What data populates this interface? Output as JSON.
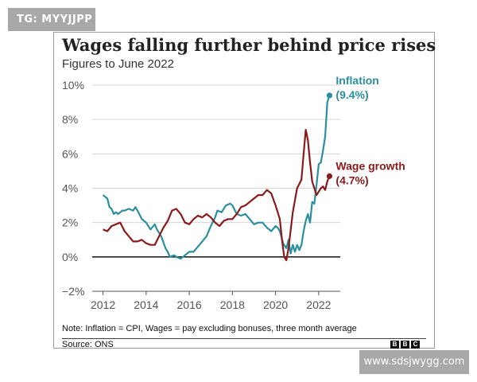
{
  "watermarks": {
    "top": "TG: MYYJJPP",
    "bottom": "www.sdsjwygg.com"
  },
  "chart_data": {
    "type": "line",
    "title": "Wages falling further behind price rises",
    "subtitle": "Figures to June 2022",
    "ylim": [
      -2,
      10
    ],
    "xlim": [
      2011.5,
      2023.0
    ],
    "y_ticks": [
      {
        "value": 10,
        "label": "10%"
      },
      {
        "value": 8,
        "label": "8%"
      },
      {
        "value": 6,
        "label": "6%"
      },
      {
        "value": 4,
        "label": "4%"
      },
      {
        "value": 2,
        "label": "2%"
      },
      {
        "value": 0,
        "label": "0%"
      },
      {
        "value": -2,
        "label": "−2%"
      }
    ],
    "x_ticks": [
      {
        "value": 2012,
        "label": "2012"
      },
      {
        "value": 2014,
        "label": "2014"
      },
      {
        "value": 2016,
        "label": "2016"
      },
      {
        "value": 2018,
        "label": "2018"
      },
      {
        "value": 2020,
        "label": "2020"
      },
      {
        "value": 2022,
        "label": "2022"
      }
    ],
    "series": [
      {
        "name": "Inflation",
        "end_label": "(9.4%)",
        "color": "#2b8fa0",
        "points": [
          [
            2012.0,
            3.6
          ],
          [
            2012.1,
            3.5
          ],
          [
            2012.2,
            3.4
          ],
          [
            2012.3,
            2.9
          ],
          [
            2012.4,
            2.8
          ],
          [
            2012.5,
            2.5
          ],
          [
            2012.6,
            2.6
          ],
          [
            2012.7,
            2.5
          ],
          [
            2012.8,
            2.6
          ],
          [
            2012.9,
            2.7
          ],
          [
            2013.0,
            2.7
          ],
          [
            2013.2,
            2.8
          ],
          [
            2013.4,
            2.7
          ],
          [
            2013.5,
            2.9
          ],
          [
            2013.6,
            2.7
          ],
          [
            2013.8,
            2.2
          ],
          [
            2013.9,
            2.1
          ],
          [
            2014.0,
            2.0
          ],
          [
            2014.2,
            1.6
          ],
          [
            2014.4,
            1.9
          ],
          [
            2014.5,
            1.6
          ],
          [
            2014.7,
            1.2
          ],
          [
            2014.9,
            0.5
          ],
          [
            2015.0,
            0.3
          ],
          [
            2015.1,
            0.0
          ],
          [
            2015.3,
            0.1
          ],
          [
            2015.4,
            0.0
          ],
          [
            2015.6,
            -0.1
          ],
          [
            2015.8,
            0.1
          ],
          [
            2016.0,
            0.3
          ],
          [
            2016.2,
            0.3
          ],
          [
            2016.4,
            0.6
          ],
          [
            2016.6,
            0.9
          ],
          [
            2016.8,
            1.2
          ],
          [
            2017.0,
            1.8
          ],
          [
            2017.2,
            2.3
          ],
          [
            2017.3,
            2.7
          ],
          [
            2017.5,
            2.6
          ],
          [
            2017.7,
            3.0
          ],
          [
            2017.9,
            3.1
          ],
          [
            2018.0,
            3.0
          ],
          [
            2018.2,
            2.5
          ],
          [
            2018.4,
            2.4
          ],
          [
            2018.6,
            2.5
          ],
          [
            2018.8,
            2.2
          ],
          [
            2019.0,
            1.9
          ],
          [
            2019.2,
            2.0
          ],
          [
            2019.4,
            2.0
          ],
          [
            2019.6,
            1.7
          ],
          [
            2019.8,
            1.5
          ],
          [
            2020.0,
            1.8
          ],
          [
            2020.1,
            1.7
          ],
          [
            2020.2,
            1.5
          ],
          [
            2020.35,
            0.8
          ],
          [
            2020.5,
            0.5
          ],
          [
            2020.6,
            1.0
          ],
          [
            2020.7,
            0.2
          ],
          [
            2020.8,
            0.7
          ],
          [
            2020.9,
            0.3
          ],
          [
            2021.0,
            0.7
          ],
          [
            2021.1,
            0.4
          ],
          [
            2021.2,
            0.7
          ],
          [
            2021.3,
            1.5
          ],
          [
            2021.4,
            2.1
          ],
          [
            2021.5,
            2.5
          ],
          [
            2021.6,
            2.0
          ],
          [
            2021.7,
            3.2
          ],
          [
            2021.8,
            3.1
          ],
          [
            2021.9,
            4.2
          ],
          [
            2022.0,
            5.4
          ],
          [
            2022.1,
            5.5
          ],
          [
            2022.2,
            6.2
          ],
          [
            2022.3,
            7.0
          ],
          [
            2022.4,
            9.0
          ],
          [
            2022.5,
            9.4
          ]
        ]
      },
      {
        "name": "Wage growth",
        "end_label": "(4.7%)",
        "color": "#8b1a1a",
        "points": [
          [
            2012.0,
            1.6
          ],
          [
            2012.2,
            1.5
          ],
          [
            2012.4,
            1.8
          ],
          [
            2012.6,
            1.9
          ],
          [
            2012.8,
            2.0
          ],
          [
            2013.0,
            1.5
          ],
          [
            2013.2,
            1.2
          ],
          [
            2013.4,
            0.9
          ],
          [
            2013.6,
            0.9
          ],
          [
            2013.8,
            1.0
          ],
          [
            2014.0,
            0.8
          ],
          [
            2014.2,
            0.7
          ],
          [
            2014.4,
            0.7
          ],
          [
            2014.6,
            1.2
          ],
          [
            2014.8,
            1.7
          ],
          [
            2015.0,
            2.1
          ],
          [
            2015.2,
            2.7
          ],
          [
            2015.4,
            2.8
          ],
          [
            2015.6,
            2.5
          ],
          [
            2015.8,
            2.0
          ],
          [
            2016.0,
            1.9
          ],
          [
            2016.2,
            2.2
          ],
          [
            2016.4,
            2.4
          ],
          [
            2016.6,
            2.3
          ],
          [
            2016.8,
            2.5
          ],
          [
            2017.0,
            2.3
          ],
          [
            2017.2,
            2.0
          ],
          [
            2017.4,
            1.8
          ],
          [
            2017.6,
            2.1
          ],
          [
            2017.8,
            2.2
          ],
          [
            2018.0,
            2.2
          ],
          [
            2018.2,
            2.5
          ],
          [
            2018.4,
            2.9
          ],
          [
            2018.6,
            3.0
          ],
          [
            2018.8,
            3.2
          ],
          [
            2019.0,
            3.4
          ],
          [
            2019.2,
            3.6
          ],
          [
            2019.4,
            3.6
          ],
          [
            2019.6,
            3.9
          ],
          [
            2019.8,
            3.7
          ],
          [
            2020.0,
            3.0
          ],
          [
            2020.2,
            2.2
          ],
          [
            2020.3,
            1.0
          ],
          [
            2020.4,
            0.0
          ],
          [
            2020.5,
            -0.2
          ],
          [
            2020.6,
            0.5
          ],
          [
            2020.8,
            2.6
          ],
          [
            2021.0,
            4.0
          ],
          [
            2021.2,
            4.5
          ],
          [
            2021.3,
            6.0
          ],
          [
            2021.4,
            7.4
          ],
          [
            2021.5,
            6.8
          ],
          [
            2021.6,
            5.5
          ],
          [
            2021.7,
            4.4
          ],
          [
            2021.8,
            4.0
          ],
          [
            2021.9,
            3.6
          ],
          [
            2022.0,
            3.8
          ],
          [
            2022.1,
            4.0
          ],
          [
            2022.2,
            4.1
          ],
          [
            2022.3,
            3.9
          ],
          [
            2022.4,
            4.4
          ],
          [
            2022.5,
            4.7
          ]
        ]
      }
    ],
    "note": "Note: Inflation = CPI, Wages = pay excluding bonuses, three month average",
    "source": "Source: ONS",
    "logo": [
      "B",
      "B",
      "C"
    ]
  }
}
